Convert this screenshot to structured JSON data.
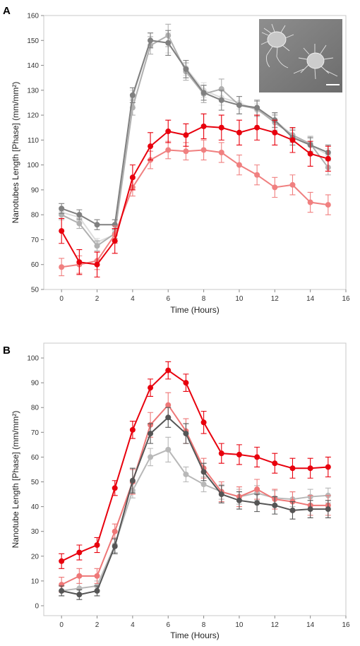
{
  "chart_data": [
    {
      "type": "line",
      "panel_label": "A",
      "xlabel": "Time (Hours)",
      "ylabel": "Nanotubes Length [Phase] (mm/mm²)",
      "xlim": [
        -1,
        16
      ],
      "ylim": [
        50,
        160
      ],
      "xticks": [
        "0",
        "2",
        "4",
        "6",
        "8",
        "10",
        "12",
        "14",
        "16"
      ],
      "yticks": [
        "50",
        "60",
        "70",
        "80",
        "90",
        "100",
        "110",
        "120",
        "130",
        "140",
        "150",
        "160"
      ],
      "grid": false,
      "inset": "micrograph",
      "x": [
        0,
        1,
        2,
        3,
        4,
        5,
        6,
        7,
        8,
        9,
        10,
        11,
        12,
        13,
        14,
        15
      ],
      "series": [
        {
          "color": "#dcdcdc",
          "values": [
            81,
            79,
            69,
            72,
            127,
            150,
            149,
            139,
            130,
            127,
            125,
            122,
            118,
            112,
            108,
            104
          ],
          "errors": [
            1.5,
            1.5,
            1.5,
            1.5,
            3,
            3,
            4,
            3,
            3,
            3,
            2.5,
            2.5,
            2.5,
            2.5,
            2.5,
            2.5
          ]
        },
        {
          "color": "#b0b0b0",
          "values": [
            80,
            76.5,
            67.5,
            72.5,
            123,
            148,
            152,
            137.5,
            128.5,
            130.5,
            124,
            122.5,
            117,
            112,
            108.5,
            99
          ],
          "errors": [
            2,
            2,
            2,
            2,
            3,
            3.5,
            4.5,
            3.5,
            3.5,
            4,
            3.5,
            3,
            3,
            3,
            3,
            3
          ]
        },
        {
          "color": "#808080",
          "values": [
            82.5,
            80,
            76,
            76,
            128,
            150,
            149,
            138.5,
            129,
            126,
            124,
            123,
            118,
            111,
            108,
            105
          ],
          "errors": [
            2,
            2,
            2,
            2,
            3,
            3,
            5,
            3.5,
            3,
            4,
            3.5,
            3,
            3,
            3,
            3,
            3
          ]
        },
        {
          "color": "#f08080",
          "values": [
            59,
            60,
            61.5,
            72,
            91,
            102,
            106,
            105.5,
            106,
            105,
            100,
            96,
            91,
            92,
            85,
            84
          ],
          "errors": [
            3.5,
            3.5,
            3.5,
            3.5,
            3.5,
            3.5,
            3.5,
            3.5,
            4,
            4,
            4,
            4,
            4,
            4,
            4,
            4
          ]
        },
        {
          "color": "#e8000d",
          "values": [
            73.5,
            61,
            60,
            69.5,
            95,
            107.5,
            113.5,
            112,
            115.5,
            115,
            113,
            115,
            113,
            110,
            104.5,
            102.5
          ],
          "errors": [
            5,
            5,
            5,
            5,
            5,
            5.5,
            4.5,
            4.5,
            5,
            5,
            5,
            5,
            5,
            5,
            5,
            5
          ]
        }
      ]
    },
    {
      "type": "line",
      "panel_label": "B",
      "xlabel": "Time (Hours)",
      "ylabel": "Nanotube Length [Phase] (mm/mm²)",
      "xlim": [
        -1,
        16
      ],
      "ylim": [
        -4,
        106
      ],
      "xticks": [
        "0",
        "2",
        "4",
        "6",
        "8",
        "10",
        "12",
        "14",
        "16"
      ],
      "yticks": [
        "0",
        "10",
        "20",
        "30",
        "40",
        "50",
        "60",
        "70",
        "80",
        "90",
        "100"
      ],
      "grid": false,
      "x": [
        0,
        1,
        2,
        3,
        4,
        5,
        6,
        7,
        8,
        9,
        10,
        11,
        12,
        13,
        14,
        15
      ],
      "series": [
        {
          "color": "#b8b8b8",
          "values": [
            6,
            7,
            8,
            24.5,
            46.5,
            60,
            63,
            53,
            49,
            46,
            44,
            45.5,
            43.5,
            43,
            44,
            44.5
          ],
          "errors": [
            2,
            2,
            2,
            3,
            3,
            3.5,
            5,
            3,
            3,
            3,
            3,
            3,
            3,
            3,
            3,
            3
          ]
        },
        {
          "color": "#ee7777",
          "values": [
            8.5,
            12,
            12,
            30,
            50,
            73,
            81,
            70.5,
            55.5,
            46,
            44,
            47,
            43,
            42,
            40.5,
            40.5
          ],
          "errors": [
            3,
            3,
            3,
            3,
            5,
            5,
            5,
            5,
            4,
            4,
            4,
            4,
            4,
            4,
            4,
            4
          ]
        },
        {
          "color": "#555555",
          "values": [
            6,
            4.5,
            6,
            24,
            50.5,
            69.5,
            76,
            69.5,
            54,
            45,
            42.5,
            41.5,
            40.5,
            38.5,
            39,
            39
          ],
          "errors": [
            2,
            2,
            2,
            3,
            5,
            4,
            4,
            4,
            3.5,
            3.5,
            3.5,
            3.5,
            3.5,
            3.5,
            3.5,
            3.5
          ]
        },
        {
          "color": "#e8000d",
          "values": [
            18,
            21.5,
            24.5,
            47.5,
            71,
            88,
            95,
            90,
            74,
            61.5,
            61,
            60,
            57.5,
            55.5,
            55.5,
            56
          ],
          "errors": [
            3,
            3,
            3,
            3,
            3.5,
            3.5,
            3.5,
            3.5,
            4.5,
            4,
            4,
            4,
            4,
            4,
            4,
            4
          ]
        }
      ]
    }
  ]
}
